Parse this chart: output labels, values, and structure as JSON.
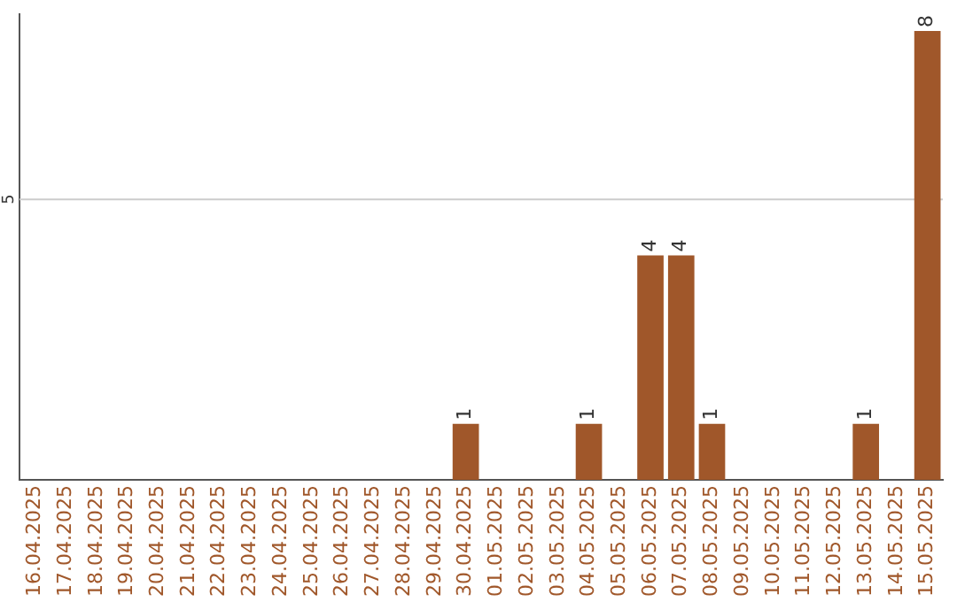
{
  "chart_data": {
    "type": "bar",
    "categories": [
      "16.04.2025",
      "17.04.2025",
      "18.04.2025",
      "19.04.2025",
      "20.04.2025",
      "21.04.2025",
      "22.04.2025",
      "23.04.2025",
      "24.04.2025",
      "25.04.2025",
      "26.04.2025",
      "27.04.2025",
      "28.04.2025",
      "29.04.2025",
      "30.04.2025",
      "01.05.2025",
      "02.05.2025",
      "03.05.2025",
      "04.05.2025",
      "05.05.2025",
      "06.05.2025",
      "07.05.2025",
      "08.05.2025",
      "09.05.2025",
      "10.05.2025",
      "11.05.2025",
      "12.05.2025",
      "13.05.2025",
      "14.05.2025",
      "15.05.2025"
    ],
    "values": [
      null,
      null,
      null,
      null,
      null,
      null,
      null,
      null,
      null,
      null,
      null,
      null,
      null,
      null,
      1,
      null,
      null,
      null,
      1,
      null,
      4,
      4,
      1,
      null,
      null,
      null,
      null,
      1,
      null,
      8
    ],
    "value_labels": [
      null,
      null,
      null,
      null,
      null,
      null,
      null,
      null,
      null,
      null,
      null,
      null,
      null,
      null,
      "1",
      null,
      null,
      null,
      "1",
      null,
      "4",
      "4",
      "1",
      null,
      null,
      null,
      null,
      "1",
      null,
      "8"
    ],
    "color": "#a0572a",
    "ylim": [
      0,
      8.3
    ],
    "ref_lines": [
      {
        "axis": "y",
        "value": 5,
        "label": "5",
        "color": "#cccccc"
      }
    ],
    "legend": false
  }
}
